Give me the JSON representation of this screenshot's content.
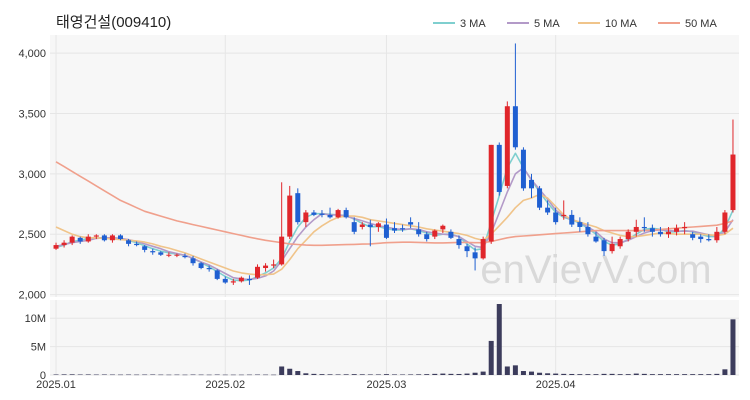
{
  "chart_data": {
    "type": "candlestick",
    "title": "태영건설(009410)",
    "watermark": "enVievV.com",
    "legend": [
      {
        "name": "3 MA",
        "color": "#7fcfcf"
      },
      {
        "name": "5 MA",
        "color": "#b39ac8"
      },
      {
        "name": "10 MA",
        "color": "#f0c48a"
      },
      {
        "name": "50 MA",
        "color": "#f0a08c"
      }
    ],
    "legend_position": "top-right",
    "up_color": "#e0262b",
    "down_color": "#1f5fd1",
    "volume_color": "#3c3c5c",
    "price_axis": {
      "min": 1980,
      "max": 4150,
      "ticks": [
        2000,
        2500,
        3000,
        3500,
        4000
      ],
      "tick_labels": [
        "2,000",
        "2,500",
        "3,000",
        "3,500",
        "4,000"
      ]
    },
    "volume_axis": {
      "min": 0,
      "max": 12500000,
      "ticks": [
        0,
        5000000,
        10000000
      ],
      "tick_labels": [
        "0",
        "5M",
        "10M"
      ]
    },
    "x_ticks": [
      {
        "index": 0,
        "label": "2025.01"
      },
      {
        "index": 21,
        "label": "2025.02"
      },
      {
        "index": 41,
        "label": "2025.03"
      },
      {
        "index": 62,
        "label": "2025.04"
      }
    ],
    "candles": [
      [
        2380,
        2430,
        2370,
        2410
      ],
      [
        2410,
        2450,
        2390,
        2430
      ],
      [
        2430,
        2490,
        2410,
        2480
      ],
      [
        2470,
        2480,
        2420,
        2440
      ],
      [
        2440,
        2500,
        2430,
        2480
      ],
      [
        2480,
        2500,
        2460,
        2490
      ],
      [
        2490,
        2500,
        2440,
        2450
      ],
      [
        2450,
        2500,
        2430,
        2490
      ],
      [
        2490,
        2500,
        2450,
        2460
      ],
      [
        2450,
        2460,
        2400,
        2420
      ],
      [
        2420,
        2440,
        2400,
        2410
      ],
      [
        2400,
        2410,
        2350,
        2370
      ],
      [
        2360,
        2380,
        2330,
        2350
      ],
      [
        2350,
        2360,
        2320,
        2330
      ],
      [
        2330,
        2350,
        2310,
        2330
      ],
      [
        2330,
        2340,
        2310,
        2330
      ],
      [
        2320,
        2340,
        2300,
        2310
      ],
      [
        2300,
        2320,
        2240,
        2260
      ],
      [
        2260,
        2270,
        2210,
        2220
      ],
      [
        2220,
        2240,
        2190,
        2210
      ],
      [
        2200,
        2210,
        2120,
        2130
      ],
      [
        2130,
        2150,
        2090,
        2100
      ],
      [
        2100,
        2130,
        2080,
        2110
      ],
      [
        2110,
        2150,
        2100,
        2140
      ],
      [
        2130,
        2160,
        2080,
        2120
      ],
      [
        2140,
        2250,
        2130,
        2230
      ],
      [
        2220,
        2260,
        2190,
        2240
      ],
      [
        2240,
        2290,
        2220,
        2250
      ],
      [
        2250,
        2930,
        2240,
        2480
      ],
      [
        2480,
        2900,
        2460,
        2820
      ],
      [
        2840,
        2880,
        2580,
        2600
      ],
      [
        2600,
        2700,
        2560,
        2680
      ],
      [
        2680,
        2700,
        2650,
        2660
      ],
      [
        2670,
        2700,
        2640,
        2660
      ],
      [
        2660,
        2720,
        2630,
        2640
      ],
      [
        2640,
        2710,
        2630,
        2700
      ],
      [
        2700,
        2720,
        2630,
        2640
      ],
      [
        2600,
        2640,
        2500,
        2520
      ],
      [
        2560,
        2600,
        2540,
        2580
      ],
      [
        2580,
        2620,
        2400,
        2560
      ],
      [
        2560,
        2600,
        2520,
        2590
      ],
      [
        2580,
        2630,
        2460,
        2470
      ],
      [
        2550,
        2600,
        2510,
        2530
      ],
      [
        2550,
        2580,
        2520,
        2540
      ],
      [
        2600,
        2640,
        2550,
        2580
      ],
      [
        2540,
        2600,
        2480,
        2500
      ],
      [
        2500,
        2520,
        2440,
        2460
      ],
      [
        2480,
        2540,
        2460,
        2530
      ],
      [
        2540,
        2580,
        2510,
        2570
      ],
      [
        2520,
        2540,
        2460,
        2470
      ],
      [
        2460,
        2490,
        2380,
        2410
      ],
      [
        2400,
        2420,
        2310,
        2360
      ],
      [
        2350,
        2390,
        2200,
        2300
      ],
      [
        2300,
        2480,
        2290,
        2460
      ],
      [
        2440,
        3240,
        2420,
        3240
      ],
      [
        3240,
        3260,
        2820,
        2850
      ],
      [
        2900,
        3600,
        2880,
        3560
      ],
      [
        3560,
        4080,
        3200,
        3220
      ],
      [
        3200,
        3220,
        2860,
        2880
      ],
      [
        2950,
        3000,
        2800,
        2880
      ],
      [
        2880,
        2900,
        2700,
        2720
      ],
      [
        2720,
        2780,
        2660,
        2680
      ],
      [
        2680,
        2720,
        2580,
        2600
      ],
      [
        2650,
        2780,
        2620,
        2660
      ],
      [
        2660,
        2700,
        2560,
        2580
      ],
      [
        2600,
        2640,
        2520,
        2560
      ],
      [
        2560,
        2600,
        2480,
        2500
      ],
      [
        2480,
        2520,
        2430,
        2440
      ],
      [
        2450,
        2470,
        2320,
        2360
      ],
      [
        2360,
        2480,
        2340,
        2420
      ],
      [
        2400,
        2480,
        2380,
        2460
      ],
      [
        2460,
        2540,
        2440,
        2520
      ],
      [
        2520,
        2620,
        2480,
        2560
      ],
      [
        2560,
        2640,
        2520,
        2550
      ],
      [
        2550,
        2580,
        2480,
        2520
      ],
      [
        2520,
        2560,
        2480,
        2500
      ],
      [
        2500,
        2560,
        2470,
        2520
      ],
      [
        2520,
        2580,
        2490,
        2550
      ],
      [
        2550,
        2600,
        2500,
        2560
      ],
      [
        2500,
        2520,
        2450,
        2470
      ],
      [
        2480,
        2500,
        2430,
        2460
      ],
      [
        2460,
        2500,
        2440,
        2450
      ],
      [
        2450,
        2560,
        2430,
        2520
      ],
      [
        2520,
        2700,
        2500,
        2680
      ],
      [
        2700,
        3450,
        2680,
        3160
      ]
    ],
    "volumes": [
      90000,
      110000,
      120000,
      90000,
      100000,
      80000,
      90000,
      80000,
      70000,
      80000,
      70000,
      80000,
      90000,
      70000,
      60000,
      70000,
      60000,
      80000,
      70000,
      60000,
      80000,
      60000,
      60000,
      60000,
      70000,
      80000,
      70000,
      60000,
      1500000,
      1100000,
      700000,
      300000,
      200000,
      150000,
      120000,
      100000,
      120000,
      150000,
      120000,
      100000,
      100000,
      150000,
      100000,
      90000,
      100000,
      120000,
      150000,
      200000,
      250000,
      200000,
      180000,
      250000,
      400000,
      600000,
      6000000,
      12500000,
      1500000,
      1700000,
      700000,
      600000,
      400000,
      300000,
      250000,
      200000,
      180000,
      150000,
      150000,
      150000,
      200000,
      200000,
      150000,
      150000,
      250000,
      200000,
      150000,
      150000,
      150000,
      150000,
      150000,
      150000,
      150000,
      150000,
      200000,
      1000000,
      9800000
    ],
    "ma_lines": [
      {
        "name": "3 MA",
        "color": "#7fcfcf",
        "values": [
          2390,
          2410,
          2440,
          2450,
          2465,
          2470,
          2470,
          2470,
          2465,
          2450,
          2430,
          2405,
          2380,
          2360,
          2345,
          2335,
          2325,
          2300,
          2265,
          2230,
          2190,
          2150,
          2120,
          2115,
          2120,
          2150,
          2180,
          2220,
          2300,
          2440,
          2560,
          2640,
          2670,
          2670,
          2665,
          2660,
          2655,
          2625,
          2590,
          2560,
          2565,
          2545,
          2535,
          2535,
          2545,
          2530,
          2510,
          2490,
          2500,
          2500,
          2480,
          2420,
          2370,
          2380,
          2600,
          2820,
          3050,
          3170,
          3050,
          2950,
          2850,
          2760,
          2680,
          2640,
          2620,
          2590,
          2550,
          2500,
          2440,
          2410,
          2420,
          2460,
          2500,
          2540,
          2550,
          2540,
          2520,
          2520,
          2530,
          2520,
          2500,
          2480,
          2480,
          2550,
          2700
        ]
      },
      {
        "name": "5 MA",
        "color": "#b39ac8",
        "values": [
          2400,
          2415,
          2430,
          2440,
          2450,
          2465,
          2470,
          2470,
          2465,
          2455,
          2440,
          2420,
          2400,
          2380,
          2355,
          2340,
          2325,
          2300,
          2270,
          2245,
          2210,
          2175,
          2140,
          2130,
          2125,
          2135,
          2155,
          2195,
          2280,
          2380,
          2480,
          2560,
          2620,
          2670,
          2660,
          2660,
          2650,
          2630,
          2610,
          2590,
          2570,
          2560,
          2545,
          2540,
          2545,
          2540,
          2520,
          2510,
          2500,
          2495,
          2480,
          2440,
          2400,
          2390,
          2510,
          2680,
          2850,
          3000,
          3050,
          2950,
          2870,
          2790,
          2700,
          2650,
          2620,
          2600,
          2560,
          2520,
          2460,
          2430,
          2430,
          2450,
          2480,
          2510,
          2530,
          2535,
          2530,
          2525,
          2525,
          2525,
          2510,
          2495,
          2485,
          2520,
          2620
        ]
      },
      {
        "name": "10 MA",
        "color": "#f0c48a",
        "values": [
          2560,
          2530,
          2500,
          2480,
          2470,
          2470,
          2465,
          2460,
          2455,
          2450,
          2445,
          2435,
          2420,
          2400,
          2385,
          2365,
          2345,
          2320,
          2295,
          2270,
          2245,
          2220,
          2195,
          2180,
          2170,
          2165,
          2165,
          2170,
          2210,
          2290,
          2380,
          2450,
          2520,
          2570,
          2610,
          2640,
          2650,
          2650,
          2640,
          2620,
          2610,
          2600,
          2590,
          2580,
          2570,
          2560,
          2545,
          2535,
          2525,
          2515,
          2505,
          2490,
          2465,
          2450,
          2500,
          2570,
          2640,
          2720,
          2780,
          2800,
          2830,
          2800,
          2730,
          2660,
          2620,
          2600,
          2580,
          2560,
          2530,
          2510,
          2490,
          2480,
          2480,
          2490,
          2500,
          2510,
          2505,
          2500,
          2500,
          2500,
          2500,
          2495,
          2490,
          2500,
          2550
        ]
      },
      {
        "name": "50 MA",
        "color": "#f0a08c",
        "values": [
          3100,
          3060,
          3020,
          2980,
          2940,
          2900,
          2860,
          2820,
          2780,
          2750,
          2720,
          2690,
          2670,
          2650,
          2630,
          2610,
          2595,
          2580,
          2565,
          2550,
          2535,
          2520,
          2505,
          2490,
          2475,
          2462,
          2450,
          2440,
          2430,
          2420,
          2415,
          2410,
          2408,
          2408,
          2410,
          2412,
          2414,
          2416,
          2418,
          2420,
          2425,
          2430,
          2432,
          2434,
          2434,
          2432,
          2430,
          2428,
          2428,
          2430,
          2432,
          2432,
          2430,
          2430,
          2440,
          2455,
          2470,
          2480,
          2485,
          2490,
          2495,
          2500,
          2505,
          2510,
          2515,
          2520,
          2525,
          2530,
          2530,
          2530,
          2530,
          2530,
          2530,
          2530,
          2535,
          2540,
          2545,
          2550,
          2555,
          2560,
          2565,
          2570,
          2575,
          2590,
          2610
        ]
      }
    ]
  }
}
